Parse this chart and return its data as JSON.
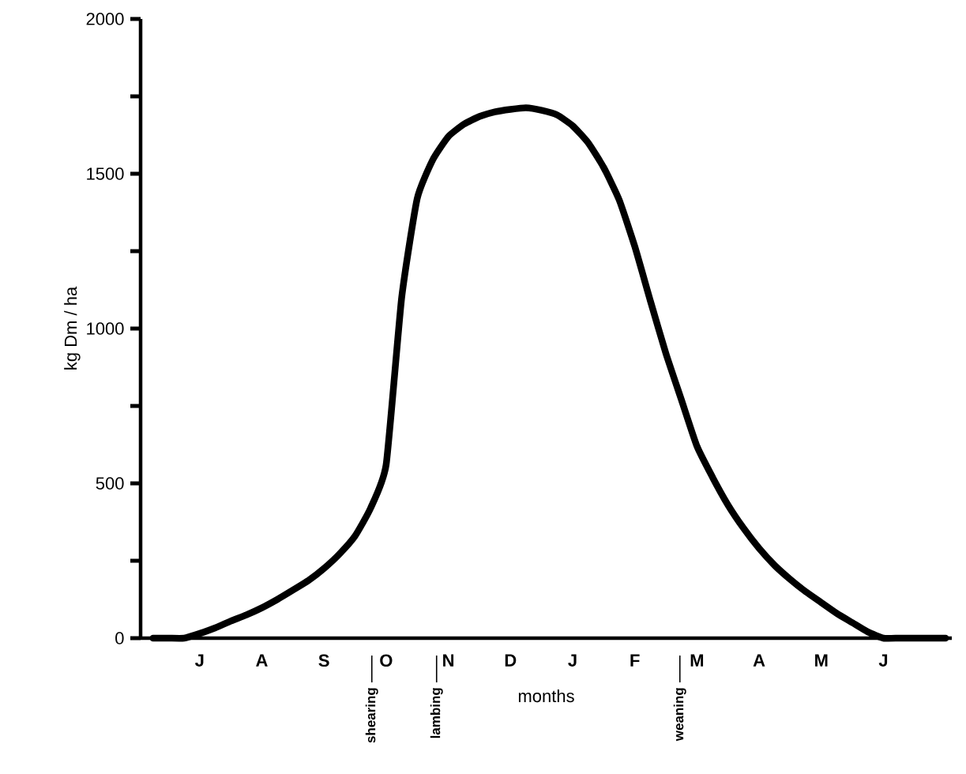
{
  "chart_data": {
    "type": "line",
    "xlabel": "months",
    "ylabel": "kg Dm / ha",
    "categories": [
      null,
      null,
      null,
      "J",
      null,
      null,
      null,
      "A",
      null,
      null,
      null,
      "S",
      null,
      null,
      null,
      "O",
      null,
      null,
      null,
      "N",
      null,
      null,
      null,
      "D",
      null,
      null,
      null,
      "J",
      null,
      null,
      null,
      "F",
      null,
      null,
      null,
      "M",
      null,
      null,
      null,
      "A",
      null,
      null,
      null,
      "M",
      null,
      null,
      null,
      "J",
      null,
      null,
      null,
      null
    ],
    "ylim": [
      0,
      2000
    ],
    "yticks": [
      0,
      {
        "value": 250,
        "label": null
      },
      500,
      {
        "value": 750,
        "label": null
      },
      1000,
      {
        "value": 1250,
        "label": null
      },
      1500,
      {
        "value": 1750,
        "label": null
      },
      2000
    ],
    "series": [
      {
        "color": "#000000",
        "values": [
          0,
          0,
          0,
          15,
          33,
          55,
          75,
          98,
          125,
          155,
          186,
          225,
          272,
          330,
          420,
          560,
          1100,
          1420,
          1545,
          1620,
          1660,
          1685,
          1700,
          1708,
          1713,
          1705,
          1690,
          1655,
          1600,
          1520,
          1415,
          1265,
          1090,
          920,
          770,
          620,
          520,
          430,
          355,
          290,
          235,
          190,
          150,
          115,
          80,
          50,
          20,
          0,
          0,
          0,
          0,
          0
        ]
      }
    ],
    "annotations": [
      "shearing",
      "lambing",
      "weaning"
    ],
    "marker": "none",
    "line_style": "solid"
  }
}
